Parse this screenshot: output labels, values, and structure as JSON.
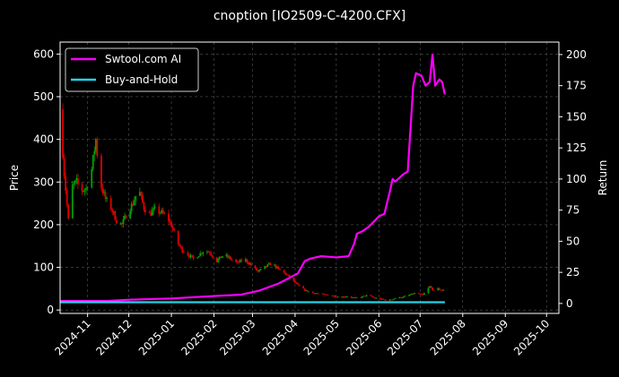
{
  "chart_data": {
    "type": "line",
    "title": "cnoption [IO2509-C-4200.CFX]",
    "xlabel": "",
    "ylabel": "Price",
    "y2label": "Return",
    "ylim": [
      -8,
      628
    ],
    "y2lim": [
      -8,
      210
    ],
    "xlim": [
      "2024-10-12",
      "2025-10-10"
    ],
    "yticks": [
      0,
      100,
      200,
      300,
      400,
      500,
      600
    ],
    "y2ticks": [
      0,
      25,
      50,
      75,
      100,
      125,
      150,
      175,
      200
    ],
    "xticks": [
      "2024-11-01",
      "2024-12-01",
      "2025-01-01",
      "2025-02-01",
      "2025-03-01",
      "2025-04-01",
      "2025-05-01",
      "2025-06-01",
      "2025-07-01",
      "2025-08-01",
      "2025-09-01",
      "2025-10-01"
    ],
    "xtick_labels": [
      "2024-11",
      "2024-12",
      "2025-01",
      "2025-02",
      "2025-03",
      "2025-04",
      "2025-05",
      "2025-06",
      "2025-07",
      "2025-08",
      "2025-09",
      "2025-10"
    ],
    "grid": true,
    "legend_position": "top-left",
    "colors": {
      "up": "#00a000",
      "down": "#e00000",
      "ai": "#ff00ff",
      "bh": "#22d3e6",
      "grid": "#555555"
    },
    "price_path": [
      [
        "2024-10-12",
        470
      ],
      [
        "2024-10-15",
        320
      ],
      [
        "2024-10-18",
        210
      ],
      [
        "2024-10-21",
        290
      ],
      [
        "2024-10-24",
        300
      ],
      [
        "2024-10-27",
        280
      ],
      [
        "2024-10-31",
        285
      ],
      [
        "2024-11-04",
        330
      ],
      [
        "2024-11-07",
        400
      ],
      [
        "2024-11-10",
        300
      ],
      [
        "2024-11-14",
        260
      ],
      [
        "2024-11-18",
        240
      ],
      [
        "2024-11-22",
        210
      ],
      [
        "2024-11-26",
        200
      ],
      [
        "2024-11-30",
        230
      ],
      [
        "2024-12-04",
        250
      ],
      [
        "2024-12-08",
        285
      ],
      [
        "2024-12-12",
        240
      ],
      [
        "2024-12-16",
        225
      ],
      [
        "2024-12-20",
        235
      ],
      [
        "2024-12-24",
        230
      ],
      [
        "2024-12-28",
        220
      ],
      [
        "2025-01-01",
        200
      ],
      [
        "2025-01-05",
        160
      ],
      [
        "2025-01-09",
        140
      ],
      [
        "2025-01-13",
        130
      ],
      [
        "2025-01-17",
        120
      ],
      [
        "2025-01-21",
        130
      ],
      [
        "2025-01-25",
        140
      ],
      [
        "2025-01-29",
        135
      ],
      [
        "2025-02-03",
        115
      ],
      [
        "2025-02-08",
        130
      ],
      [
        "2025-02-13",
        120
      ],
      [
        "2025-02-18",
        110
      ],
      [
        "2025-02-23",
        120
      ],
      [
        "2025-02-28",
        105
      ],
      [
        "2025-03-05",
        90
      ],
      [
        "2025-03-10",
        100
      ],
      [
        "2025-03-15",
        110
      ],
      [
        "2025-03-20",
        95
      ],
      [
        "2025-03-25",
        85
      ],
      [
        "2025-03-30",
        70
      ],
      [
        "2025-04-04",
        55
      ],
      [
        "2025-04-09",
        45
      ],
      [
        "2025-04-14",
        40
      ],
      [
        "2025-04-19",
        38
      ],
      [
        "2025-04-24",
        35
      ],
      [
        "2025-04-29",
        33
      ],
      [
        "2025-05-04",
        30
      ],
      [
        "2025-05-09",
        32
      ],
      [
        "2025-05-14",
        28
      ],
      [
        "2025-05-19",
        30
      ],
      [
        "2025-05-24",
        35
      ],
      [
        "2025-05-29",
        28
      ],
      [
        "2025-06-03",
        25
      ],
      [
        "2025-06-08",
        22
      ],
      [
        "2025-06-13",
        28
      ],
      [
        "2025-06-18",
        30
      ],
      [
        "2025-06-23",
        35
      ],
      [
        "2025-06-28",
        40
      ],
      [
        "2025-07-03",
        35
      ],
      [
        "2025-07-08",
        55
      ],
      [
        "2025-07-11",
        45
      ],
      [
        "2025-07-14",
        50
      ],
      [
        "2025-07-17",
        45
      ],
      [
        "2025-07-20",
        55
      ]
    ],
    "series": [
      {
        "name": "Swtool.com AI",
        "axis": "right",
        "points": [
          [
            "2024-10-12",
            2
          ],
          [
            "2024-10-20",
            2
          ],
          [
            "2024-11-15",
            2
          ],
          [
            "2024-12-01",
            3
          ],
          [
            "2025-01-01",
            4
          ],
          [
            "2025-02-01",
            6
          ],
          [
            "2025-02-20",
            7
          ],
          [
            "2025-03-05",
            10
          ],
          [
            "2025-03-20",
            16
          ],
          [
            "2025-04-01",
            23
          ],
          [
            "2025-04-03",
            24
          ],
          [
            "2025-04-08",
            34
          ],
          [
            "2025-04-12",
            36
          ],
          [
            "2025-04-20",
            38
          ],
          [
            "2025-05-01",
            37
          ],
          [
            "2025-05-10",
            38
          ],
          [
            "2025-05-14",
            48
          ],
          [
            "2025-05-16",
            56
          ],
          [
            "2025-05-20",
            58
          ],
          [
            "2025-05-25",
            62
          ],
          [
            "2025-06-01",
            70
          ],
          [
            "2025-06-05",
            72
          ],
          [
            "2025-06-09",
            90
          ],
          [
            "2025-06-11",
            100
          ],
          [
            "2025-06-13",
            98
          ],
          [
            "2025-06-19",
            104
          ],
          [
            "2025-06-22",
            106
          ],
          [
            "2025-06-26",
            175
          ],
          [
            "2025-06-28",
            185
          ],
          [
            "2025-07-02",
            183
          ],
          [
            "2025-07-05",
            175
          ],
          [
            "2025-07-08",
            178
          ],
          [
            "2025-07-10",
            200
          ],
          [
            "2025-07-12",
            175
          ],
          [
            "2025-07-15",
            180
          ],
          [
            "2025-07-17",
            178
          ],
          [
            "2025-07-19",
            168
          ]
        ]
      },
      {
        "name": "Buy-and-Hold",
        "axis": "right",
        "points": [
          [
            "2024-10-12",
            1
          ],
          [
            "2024-10-20",
            1
          ],
          [
            "2025-07-19",
            1
          ]
        ]
      }
    ]
  }
}
